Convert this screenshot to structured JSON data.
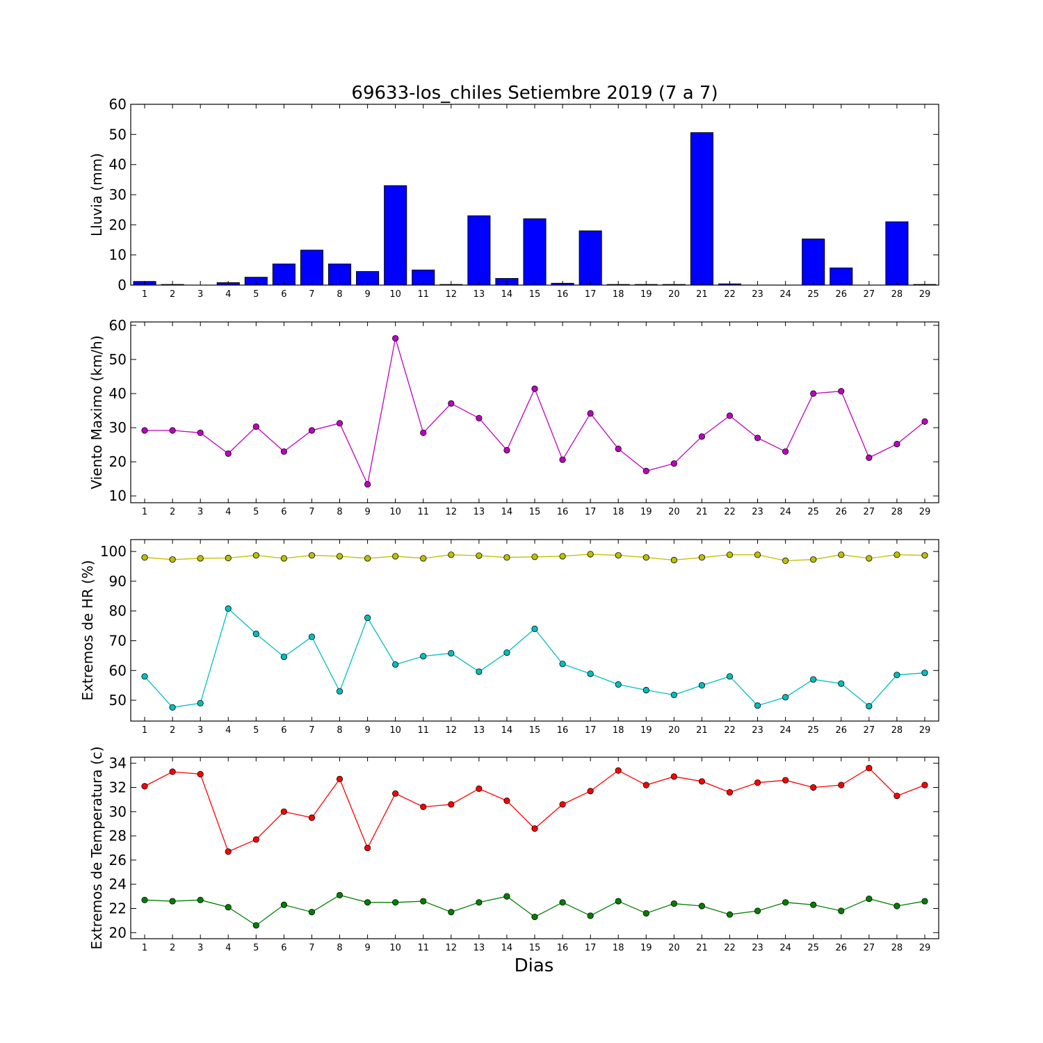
{
  "figure": {
    "title": "69633-los_chiles Setiembre 2019  (7 a 7)",
    "xlabel": "Dias"
  },
  "colors": {
    "bar_fill": "#0000ff",
    "wind": "#bf00bf",
    "hr_max": "#bfbf00",
    "hr_min": "#00bfbf",
    "t_max": "#ff0000",
    "t_min": "#008000"
  },
  "chart_data": [
    {
      "type": "bar",
      "ylabel": "Lluvia (mm)",
      "ylim": [
        0,
        60
      ],
      "yticks": [
        0,
        10,
        20,
        30,
        40,
        50,
        60
      ],
      "categories": [
        1,
        2,
        3,
        4,
        5,
        6,
        7,
        8,
        9,
        10,
        11,
        12,
        13,
        14,
        15,
        16,
        17,
        18,
        19,
        20,
        21,
        22,
        23,
        24,
        25,
        26,
        27,
        28,
        29
      ],
      "series": [
        {
          "color": "#0000ff",
          "values": [
            1.2,
            0.2,
            0,
            0.8,
            2.6,
            7.0,
            11.6,
            7.0,
            4.5,
            33.0,
            5.0,
            0.2,
            23.0,
            2.2,
            22.0,
            0.6,
            18.0,
            0.2,
            0.2,
            0.2,
            50.6,
            0.4,
            0,
            0,
            15.3,
            5.7,
            0,
            21.0,
            0.2
          ]
        }
      ]
    },
    {
      "type": "line",
      "ylabel": "Viento Maximo (km/h)",
      "ylim": [
        8,
        61
      ],
      "yticks": [
        10,
        20,
        30,
        40,
        50,
        60
      ],
      "categories": [
        1,
        2,
        3,
        4,
        5,
        6,
        7,
        8,
        9,
        10,
        11,
        12,
        13,
        14,
        15,
        16,
        17,
        18,
        19,
        20,
        21,
        22,
        23,
        24,
        25,
        26,
        27,
        28,
        29
      ],
      "series": [
        {
          "color": "#bf00bf",
          "values": [
            29.2,
            29.2,
            28.5,
            22.4,
            30.3,
            23.0,
            29.2,
            31.3,
            13.4,
            56.2,
            28.5,
            37.1,
            32.8,
            23.4,
            41.4,
            20.6,
            34.2,
            23.8,
            17.3,
            19.5,
            27.4,
            33.5,
            27.0,
            23.0,
            40.0,
            40.7,
            21.2,
            25.2,
            31.8
          ]
        }
      ]
    },
    {
      "type": "line",
      "ylabel": "Extremos de HR (%)",
      "ylim": [
        43,
        104
      ],
      "yticks": [
        50,
        60,
        70,
        80,
        90,
        100
      ],
      "categories": [
        1,
        2,
        3,
        4,
        5,
        6,
        7,
        8,
        9,
        10,
        11,
        12,
        13,
        14,
        15,
        16,
        17,
        18,
        19,
        20,
        21,
        22,
        23,
        24,
        25,
        26,
        27,
        28,
        29
      ],
      "series": [
        {
          "color": "#bfbf00",
          "values": [
            98,
            97.3,
            97.7,
            97.8,
            98.7,
            97.7,
            98.7,
            98.4,
            97.7,
            98.4,
            97.7,
            98.9,
            98.6,
            98,
            98.2,
            98.4,
            99.1,
            98.7,
            98,
            97.1,
            98,
            98.9,
            98.9,
            96.9,
            97.3,
            98.9,
            97.7,
            98.9,
            98.7
          ]
        },
        {
          "color": "#00bfbf",
          "values": [
            58,
            47.6,
            49,
            80.8,
            72.3,
            64.6,
            71.3,
            53,
            77.7,
            62,
            64.8,
            65.8,
            59.6,
            66,
            74,
            62.2,
            58.9,
            55.3,
            53.4,
            51.8,
            55,
            58,
            48.2,
            51,
            57,
            55.6,
            48,
            58.5,
            59.2
          ]
        }
      ]
    },
    {
      "type": "line",
      "ylabel": "Extremos de Temperatura (c)",
      "ylim": [
        19.5,
        34.5
      ],
      "yticks": [
        20,
        22,
        24,
        26,
        28,
        30,
        32,
        34
      ],
      "categories": [
        1,
        2,
        3,
        4,
        5,
        6,
        7,
        8,
        9,
        10,
        11,
        12,
        13,
        14,
        15,
        16,
        17,
        18,
        19,
        20,
        21,
        22,
        23,
        24,
        25,
        26,
        27,
        28,
        29
      ],
      "series": [
        {
          "color": "#ff0000",
          "values": [
            32.1,
            33.3,
            33.1,
            26.7,
            27.7,
            30.0,
            29.5,
            32.7,
            27.0,
            31.5,
            30.4,
            30.6,
            31.9,
            30.9,
            28.6,
            30.6,
            31.7,
            33.4,
            32.2,
            32.9,
            32.5,
            31.6,
            32.4,
            32.6,
            32.0,
            32.2,
            33.6,
            31.3,
            32.2
          ]
        },
        {
          "color": "#008000",
          "values": [
            22.7,
            22.6,
            22.7,
            22.1,
            20.6,
            22.3,
            21.7,
            23.1,
            22.5,
            22.5,
            22.6,
            21.7,
            22.5,
            23.0,
            21.3,
            22.5,
            21.4,
            22.6,
            21.6,
            22.4,
            22.2,
            21.5,
            21.8,
            22.5,
            22.3,
            21.8,
            22.8,
            22.2,
            22.6
          ]
        }
      ]
    }
  ]
}
